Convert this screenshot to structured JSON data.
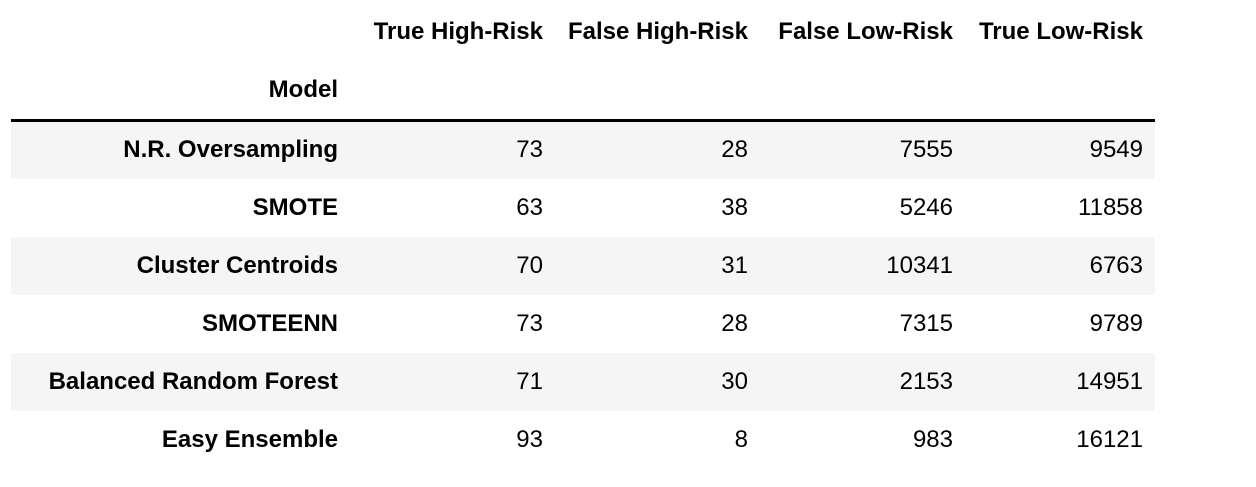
{
  "table": {
    "columns": [
      "True High-Risk",
      "False High-Risk",
      "False Low-Risk",
      "True Low-Risk"
    ],
    "index_name": "Model",
    "rows": [
      {
        "model": "N.R. Oversampling",
        "values": [
          "73",
          "28",
          "7555",
          "9549"
        ]
      },
      {
        "model": "SMOTE",
        "values": [
          "63",
          "38",
          "5246",
          "11858"
        ]
      },
      {
        "model": "Cluster Centroids",
        "values": [
          "70",
          "31",
          "10341",
          "6763"
        ]
      },
      {
        "model": "SMOTEENN",
        "values": [
          "73",
          "28",
          "7315",
          "9789"
        ]
      },
      {
        "model": "Balanced Random Forest",
        "values": [
          "71",
          "30",
          "2153",
          "14951"
        ]
      },
      {
        "model": "Easy Ensemble",
        "values": [
          "93",
          "8",
          "983",
          "16121"
        ]
      }
    ]
  }
}
